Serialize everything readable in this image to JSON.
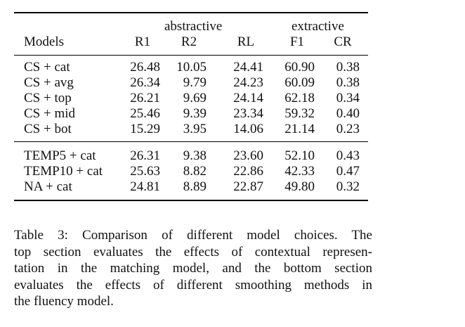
{
  "table": {
    "group_headers": {
      "abstractive": "abstractive",
      "extractive": "extractive"
    },
    "columns": [
      "Models",
      "R1",
      "R2",
      "RL",
      "F1",
      "CR"
    ],
    "sections": [
      {
        "rows": [
          [
            "CS + cat",
            "26.48",
            "10.05",
            "24.41",
            "60.90",
            "0.38"
          ],
          [
            "CS + avg",
            "26.34",
            "9.79",
            "24.23",
            "60.09",
            "0.38"
          ],
          [
            "CS + top",
            "26.21",
            "9.69",
            "24.14",
            "62.18",
            "0.34"
          ],
          [
            "CS + mid",
            "25.46",
            "9.39",
            "23.34",
            "59.32",
            "0.40"
          ],
          [
            "CS + bot",
            "15.29",
            "3.95",
            "14.06",
            "21.14",
            "0.23"
          ]
        ]
      },
      {
        "rows": [
          [
            "TEMP5 + cat",
            "26.31",
            "9.38",
            "23.60",
            "52.10",
            "0.43"
          ],
          [
            "TEMP10 + cat",
            "25.63",
            "8.82",
            "22.86",
            "42.33",
            "0.47"
          ],
          [
            "NA + cat",
            "24.81",
            "8.89",
            "22.87",
            "49.80",
            "0.32"
          ]
        ]
      }
    ]
  },
  "caption": {
    "lines": [
      "Table 3: Comparison of different model choices. The",
      "top section evaluates the effects of contextual represen-",
      "tation in the matching model, and the bottom section",
      "evaluates the effects of different smoothing methods in",
      "the fluency model."
    ]
  }
}
